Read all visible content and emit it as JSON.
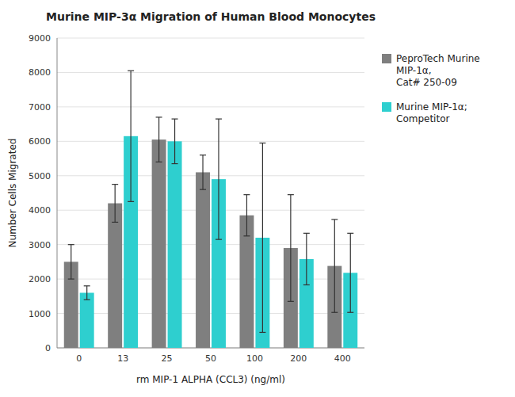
{
  "chart_data": {
    "type": "bar",
    "title": "Murine MIP-3α Migration of Human Blood Monocytes",
    "xlabel": "rm MIP-1 ALPHA (CCL3) (ng/ml)",
    "ylabel": "Number Cells Migrated",
    "categories": [
      "0",
      "13",
      "25",
      "50",
      "100",
      "200",
      "400"
    ],
    "series": [
      {
        "name": "PeproTech Murine\nMIP-1α,\nCat# 250-09",
        "color": "#7f7f7f",
        "values": [
          2500,
          4200,
          6050,
          5100,
          3850,
          2900,
          2380
        ],
        "errors": [
          500,
          550,
          650,
          500,
          600,
          1550,
          1350
        ]
      },
      {
        "name": "Murine MIP-1α;\nCompetitor",
        "color": "#2ECFCF",
        "values": [
          1600,
          6150,
          6000,
          4900,
          3200,
          2580,
          2180
        ],
        "errors": [
          200,
          1900,
          650,
          1750,
          2750,
          750,
          1150
        ]
      }
    ],
    "ylim": [
      0,
      9000
    ],
    "yticks": [
      0,
      1000,
      2000,
      3000,
      4000,
      5000,
      6000,
      7000,
      8000,
      9000
    ],
    "grid": true,
    "legend": "right"
  }
}
